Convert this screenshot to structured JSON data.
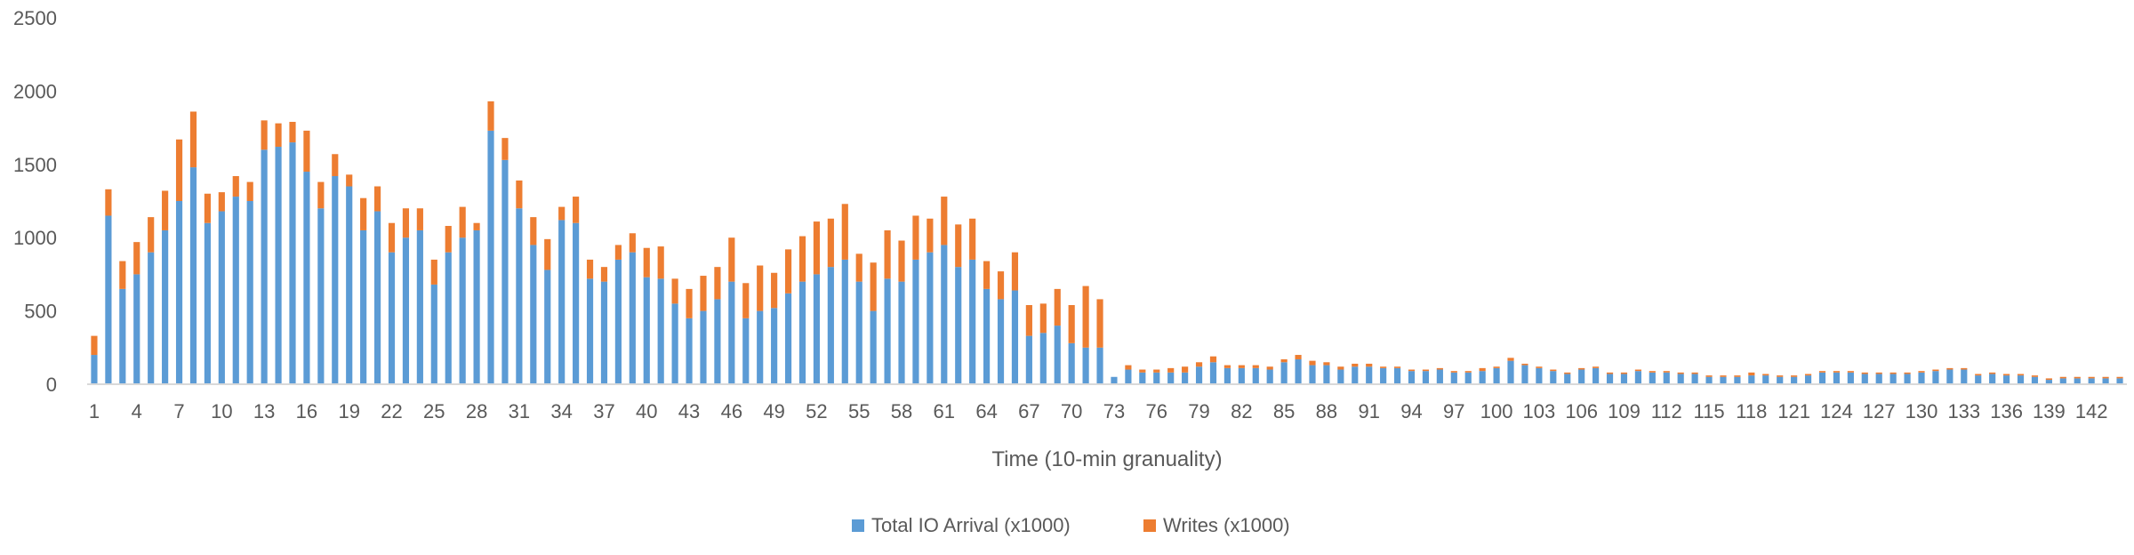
{
  "chart_data": {
    "type": "bar",
    "stacked": true,
    "xlabel": "Time (10-min granuality)",
    "ylabel": "",
    "ylim": [
      0,
      2500
    ],
    "yticks": [
      0,
      500,
      1000,
      1500,
      2000,
      2500
    ],
    "grid": false,
    "legend_position": "bottom-center",
    "x": [
      1,
      2,
      3,
      4,
      5,
      6,
      7,
      8,
      9,
      10,
      11,
      12,
      13,
      14,
      15,
      16,
      17,
      18,
      19,
      20,
      21,
      22,
      23,
      24,
      25,
      26,
      27,
      28,
      29,
      30,
      31,
      32,
      33,
      34,
      35,
      36,
      37,
      38,
      39,
      40,
      41,
      42,
      43,
      44,
      45,
      46,
      47,
      48,
      49,
      50,
      51,
      52,
      53,
      54,
      55,
      56,
      57,
      58,
      59,
      60,
      61,
      62,
      63,
      64,
      65,
      66,
      67,
      68,
      69,
      70,
      71,
      72,
      73,
      74,
      75,
      76,
      77,
      78,
      79,
      80,
      81,
      82,
      83,
      84,
      85,
      86,
      87,
      88,
      89,
      90,
      91,
      92,
      93,
      94,
      95,
      96,
      97,
      98,
      99,
      100,
      101,
      102,
      103,
      104,
      105,
      106,
      107,
      108,
      109,
      110,
      111,
      112,
      113,
      114,
      115,
      116,
      117,
      118,
      119,
      120,
      121,
      122,
      123,
      124,
      125,
      126,
      127,
      128,
      129,
      130,
      131,
      132,
      133,
      134,
      135,
      136,
      137,
      138,
      139,
      140,
      141,
      142,
      143,
      144
    ],
    "x_tick_labels": [
      "1",
      "4",
      "7",
      "10",
      "13",
      "16",
      "19",
      "22",
      "25",
      "28",
      "31",
      "34",
      "37",
      "40",
      "43",
      "46",
      "49",
      "52",
      "55",
      "58",
      "61",
      "64",
      "67",
      "70",
      "73",
      "76",
      "79",
      "82",
      "85",
      "88",
      "91",
      "94",
      "97",
      "100",
      "103",
      "106",
      "109",
      "112",
      "115",
      "118",
      "121",
      "124",
      "127",
      "130",
      "133",
      "136",
      "139",
      "142"
    ],
    "series": [
      {
        "name": "Total IO Arrival (x1000)",
        "color": "#5B9BD5",
        "values": [
          200,
          1150,
          650,
          750,
          900,
          1050,
          1250,
          1480,
          1100,
          1180,
          1280,
          1250,
          1600,
          1620,
          1650,
          1450,
          1200,
          1420,
          1350,
          1050,
          1180,
          900,
          1000,
          1050,
          680,
          900,
          1000,
          1050,
          1730,
          1530,
          1200,
          950,
          780,
          1120,
          1100,
          720,
          700,
          850,
          900,
          730,
          720,
          550,
          450,
          500,
          580,
          700,
          450,
          500,
          520,
          620,
          700,
          750,
          800,
          850,
          700,
          500,
          720,
          700,
          850,
          900,
          950,
          800,
          850,
          650,
          580,
          640,
          330,
          350,
          400,
          280,
          250,
          250,
          50,
          100,
          80,
          80,
          80,
          80,
          120,
          150,
          110,
          110,
          110,
          100,
          150,
          170,
          130,
          130,
          100,
          120,
          120,
          110,
          110,
          90,
          90,
          100,
          80,
          80,
          90,
          110,
          160,
          130,
          110,
          90,
          70,
          100,
          110,
          70,
          70,
          90,
          80,
          80,
          70,
          70,
          50,
          50,
          50,
          60,
          60,
          50,
          50,
          60,
          80,
          80,
          80,
          70,
          70,
          70,
          70,
          80,
          90,
          100,
          100,
          60,
          70,
          60,
          60,
          50,
          30,
          40,
          40,
          40,
          40,
          40
        ]
      },
      {
        "name": "Writes (x1000)",
        "color": "#ED7D31",
        "values": [
          130,
          180,
          190,
          220,
          240,
          270,
          420,
          380,
          200,
          130,
          140,
          130,
          200,
          160,
          140,
          280,
          180,
          150,
          80,
          220,
          170,
          200,
          200,
          150,
          170,
          180,
          210,
          50,
          200,
          150,
          190,
          190,
          210,
          90,
          180,
          130,
          100,
          100,
          130,
          200,
          220,
          170,
          200,
          240,
          220,
          300,
          240,
          310,
          240,
          300,
          310,
          360,
          330,
          380,
          190,
          330,
          330,
          280,
          300,
          230,
          330,
          290,
          280,
          190,
          190,
          260,
          210,
          200,
          250,
          260,
          420,
          330,
          0,
          30,
          20,
          20,
          30,
          40,
          30,
          40,
          20,
          20,
          20,
          20,
          20,
          30,
          30,
          20,
          20,
          20,
          20,
          10,
          10,
          10,
          10,
          10,
          10,
          10,
          20,
          10,
          20,
          10,
          10,
          10,
          10,
          10,
          10,
          10,
          10,
          10,
          10,
          10,
          10,
          10,
          10,
          10,
          10,
          20,
          10,
          10,
          10,
          10,
          10,
          10,
          10,
          10,
          10,
          10,
          10,
          10,
          10,
          10,
          10,
          10,
          10,
          10,
          10,
          10,
          10,
          10,
          10,
          10,
          10,
          10
        ]
      }
    ]
  }
}
